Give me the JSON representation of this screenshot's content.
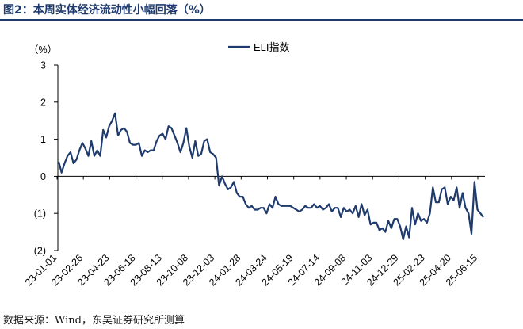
{
  "figure": {
    "title": "图2：本周实体经济流动性小幅回落（%）",
    "source": "数据来源：Wind，东吴证券研究所测算"
  },
  "colors": {
    "line": "#1f3b6d",
    "negative_tick": "#c00000",
    "axis": "#000000"
  },
  "chart_data": {
    "type": "line",
    "ylabel": "（%）",
    "ylim": [
      -2,
      3
    ],
    "yticks": [
      {
        "value": 3,
        "label": "3"
      },
      {
        "value": 2,
        "label": "2"
      },
      {
        "value": 1,
        "label": "1"
      },
      {
        "value": 0,
        "label": "0"
      },
      {
        "value": -1,
        "label": "(1)"
      },
      {
        "value": -2,
        "label": "(2)"
      }
    ],
    "xtick_labels": [
      "23-01-01",
      "23-02-26",
      "23-04-23",
      "23-06-18",
      "23-08-13",
      "23-10-08",
      "23-12-03",
      "24-01-28",
      "24-03-24",
      "24-05-19",
      "24-07-14",
      "24-09-08",
      "24-11-03",
      "24-12-29",
      "25-02-23",
      "25-04-20",
      "25-06-15"
    ],
    "grid": false,
    "legend": "top",
    "series": [
      {
        "name": "ELI指数",
        "values": [
          0.4,
          0.1,
          0.35,
          0.55,
          0.65,
          0.35,
          0.45,
          0.7,
          0.9,
          0.75,
          0.55,
          0.95,
          0.55,
          0.7,
          0.55,
          1.25,
          1.05,
          1.35,
          1.5,
          1.7,
          1.1,
          1.25,
          1.3,
          1.2,
          0.9,
          0.85,
          0.85,
          0.9,
          0.55,
          0.7,
          0.65,
          0.7,
          0.7,
          0.95,
          1.1,
          1.15,
          1.0,
          1.35,
          1.3,
          1.1,
          0.9,
          0.65,
          0.9,
          1.3,
          0.8,
          0.5,
          0.95,
          0.55,
          0.6,
          0.95,
          1.0,
          0.65,
          0.6,
          0.5,
          -0.25,
          0.0,
          -0.2,
          -0.35,
          -0.3,
          -0.15,
          -0.45,
          -0.55,
          -0.55,
          -0.75,
          -0.85,
          -0.8,
          -0.9,
          -0.9,
          -0.85,
          -0.85,
          -1.0,
          -0.75,
          -0.85,
          -0.55,
          -0.75,
          -0.8,
          -0.8,
          -0.8,
          -0.8,
          -0.85,
          -0.9,
          -0.95,
          -0.9,
          -0.8,
          -0.85,
          -0.85,
          -0.75,
          -0.85,
          -0.8,
          -0.9,
          -0.85,
          -0.75,
          -0.95,
          -0.85,
          -0.85,
          -1.1,
          -0.85,
          -0.95,
          -0.9,
          -1.0,
          -0.8,
          -1.1,
          -0.75,
          -1.05,
          -0.9,
          -1.3,
          -1.25,
          -1.25,
          -1.45,
          -1.4,
          -1.5,
          -1.2,
          -1.4,
          -1.15,
          -1.15,
          -1.35,
          -1.7,
          -1.35,
          -1.65,
          -0.85,
          -1.3,
          -1.0,
          -1.2,
          -1.15,
          -1.25,
          -1.0,
          -0.3,
          -0.7,
          -0.7,
          -0.35,
          -0.3,
          -0.75,
          -0.55,
          -0.65,
          -0.3,
          -0.85,
          -0.45,
          -0.85,
          -1.0,
          -1.55,
          -0.15,
          -0.9,
          -1.0,
          -1.1
        ]
      }
    ]
  }
}
